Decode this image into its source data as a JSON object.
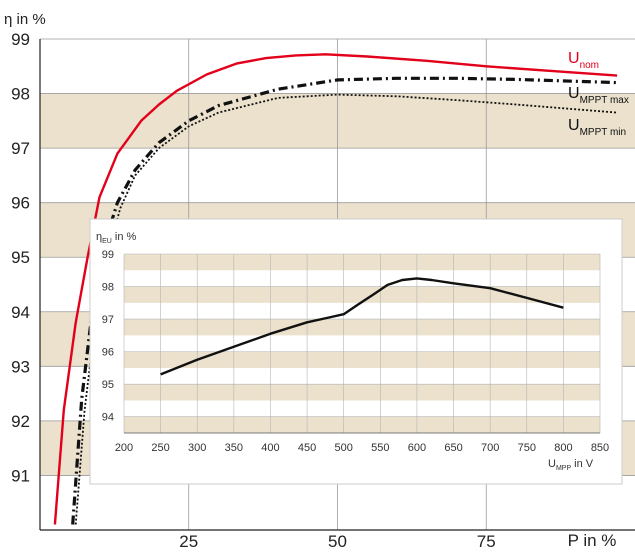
{
  "chart_data": [
    {
      "type": "line",
      "ylabel_main": "η",
      "ylabel_unit": "in %",
      "xlabel": "P in %",
      "xlim": [
        0,
        100
      ],
      "ylim": [
        90,
        99
      ],
      "x_ticks": [
        25,
        50,
        75
      ],
      "y_ticks": [
        91,
        92,
        93,
        94,
        95,
        96,
        97,
        98,
        99
      ],
      "grid": true,
      "band_color": "#ebe1cc",
      "series": [
        {
          "name": "U",
          "name_sub": "nom",
          "color": "#e3001b",
          "style": "solid",
          "x": [
            2.5,
            4,
            6,
            8,
            10,
            13,
            17,
            20,
            23,
            28,
            33,
            38,
            43,
            48,
            55,
            65,
            75,
            85,
            97
          ],
          "y": [
            90.1,
            92.2,
            93.8,
            95.0,
            96.1,
            96.9,
            97.5,
            97.8,
            98.05,
            98.35,
            98.55,
            98.65,
            98.7,
            98.72,
            98.68,
            98.6,
            98.5,
            98.42,
            98.33
          ]
        },
        {
          "name": "U",
          "name_sub": "MPPT max",
          "color": "#111111",
          "style": "dashdot",
          "x": [
            5.5,
            7,
            9,
            11,
            13,
            16,
            20,
            25,
            30,
            40,
            50,
            60,
            70,
            80,
            97
          ],
          "y": [
            90.1,
            92.4,
            94.2,
            95.3,
            96.0,
            96.6,
            97.1,
            97.5,
            97.78,
            98.08,
            98.25,
            98.28,
            98.28,
            98.26,
            98.2
          ]
        },
        {
          "name": "U",
          "name_sub": "MPPT min",
          "color": "#111111",
          "style": "dotted",
          "x": [
            6,
            7.5,
            9.5,
            11.5,
            13.5,
            16,
            20,
            25,
            30,
            40,
            50,
            60,
            70,
            80,
            97
          ],
          "y": [
            90.1,
            92.2,
            94.0,
            95.1,
            95.9,
            96.5,
            97.0,
            97.4,
            97.65,
            97.92,
            97.98,
            97.95,
            97.88,
            97.8,
            97.65
          ]
        }
      ],
      "legend_labels": [
        "U",
        "U",
        "U"
      ]
    },
    {
      "type": "line",
      "ylabel_main": "η",
      "ylabel_sub": "EU",
      "ylabel_unit": "in %",
      "xlabel_main": "U",
      "xlabel_sub": "MPP",
      "xlabel_unit": "in V",
      "xlim": [
        200,
        850
      ],
      "ylim": [
        93.5,
        99
      ],
      "x_ticks": [
        200,
        250,
        300,
        350,
        400,
        450,
        500,
        550,
        600,
        650,
        700,
        750,
        800,
        850
      ],
      "y_ticks": [
        94,
        95,
        96,
        97,
        98,
        99
      ],
      "grid": true,
      "series": [
        {
          "color": "#111111",
          "x": [
            250,
            300,
            350,
            400,
            450,
            480,
            500,
            520,
            540,
            560,
            580,
            600,
            620,
            650,
            700,
            750,
            800
          ],
          "y": [
            95.3,
            95.75,
            96.15,
            96.55,
            96.9,
            97.05,
            97.15,
            97.45,
            97.75,
            98.05,
            98.2,
            98.25,
            98.2,
            98.1,
            97.95,
            97.65,
            97.35
          ]
        }
      ]
    }
  ]
}
